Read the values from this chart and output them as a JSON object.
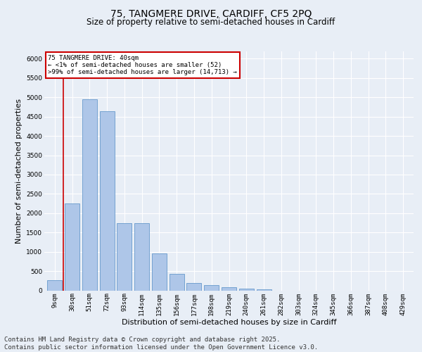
{
  "title_line1": "75, TANGMERE DRIVE, CARDIFF, CF5 2PQ",
  "title_line2": "Size of property relative to semi-detached houses in Cardiff",
  "xlabel": "Distribution of semi-detached houses by size in Cardiff",
  "ylabel": "Number of semi-detached properties",
  "categories": [
    "9sqm",
    "30sqm",
    "51sqm",
    "72sqm",
    "93sqm",
    "114sqm",
    "135sqm",
    "156sqm",
    "177sqm",
    "198sqm",
    "219sqm",
    "240sqm",
    "261sqm",
    "282sqm",
    "303sqm",
    "324sqm",
    "345sqm",
    "366sqm",
    "387sqm",
    "408sqm",
    "429sqm"
  ],
  "values": [
    270,
    2250,
    4950,
    4650,
    1750,
    1750,
    950,
    420,
    200,
    130,
    80,
    50,
    30,
    0,
    0,
    0,
    0,
    0,
    0,
    0,
    0
  ],
  "bar_color": "#aec6e8",
  "bar_edge_color": "#6699cc",
  "annotation_text_line1": "75 TANGMERE DRIVE: 40sqm",
  "annotation_text_line2": "← <1% of semi-detached houses are smaller (52)",
  "annotation_text_line3": ">99% of semi-detached houses are larger (14,713) →",
  "ylim": [
    0,
    6200
  ],
  "yticks": [
    0,
    500,
    1000,
    1500,
    2000,
    2500,
    3000,
    3500,
    4000,
    4500,
    5000,
    5500,
    6000
  ],
  "footer_line1": "Contains HM Land Registry data © Crown copyright and database right 2025.",
  "footer_line2": "Contains public sector information licensed under the Open Government Licence v3.0.",
  "bg_color": "#e8eef6",
  "plot_bg_color": "#e8eef6",
  "grid_color": "#ffffff",
  "annotation_box_color": "#ffffff",
  "annotation_border_color": "#cc0000",
  "red_line_color": "#cc0000",
  "title_fontsize": 10,
  "subtitle_fontsize": 8.5,
  "tick_fontsize": 6.5,
  "label_fontsize": 8,
  "footer_fontsize": 6.5
}
